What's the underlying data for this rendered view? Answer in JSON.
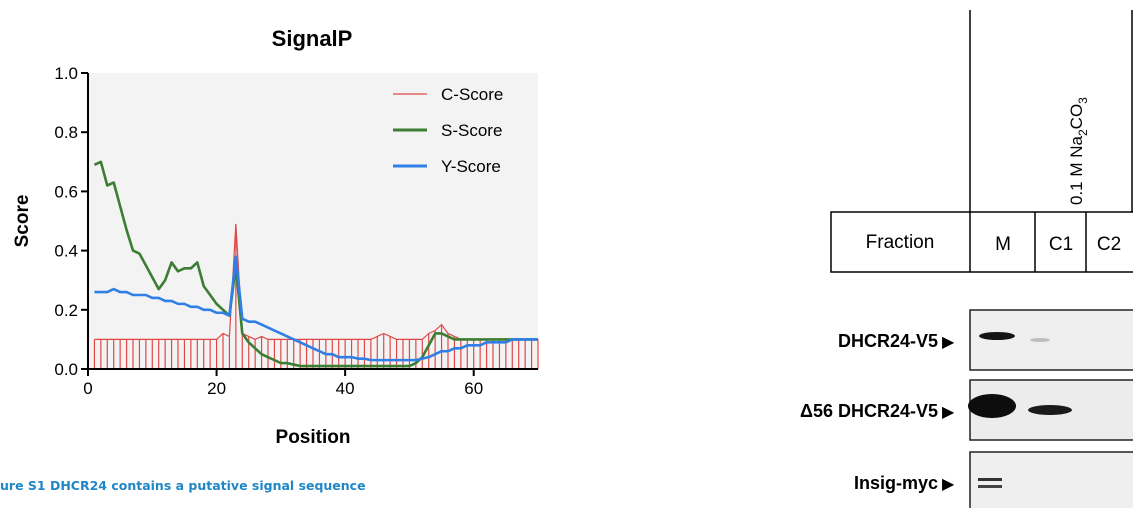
{
  "colors": {
    "c_score": "#e04848",
    "s_score": "#3a7d33",
    "y_score": "#2f7fe6",
    "caption": "#1f86c8",
    "plot_bg": "#f3f3f3"
  },
  "caption": "ure S1 DHCR24 contains a putative signal sequence",
  "chart_data": {
    "type": "line",
    "title": "SignalP",
    "xlabel": "Position",
    "ylabel": "Score",
    "xlim": [
      0,
      70
    ],
    "ylim": [
      0,
      1.0
    ],
    "x_ticks": [
      0,
      20,
      40,
      60
    ],
    "y_ticks": [
      0.0,
      0.2,
      0.4,
      0.6,
      0.8,
      1.0
    ],
    "x_tick_labels": [
      "0",
      "20",
      "40",
      "60"
    ],
    "y_tick_labels": [
      "0.0",
      "0.2",
      "0.4",
      "0.6",
      "0.8",
      "1.0"
    ],
    "legend_position": "top-right",
    "grid": false,
    "series": [
      {
        "name": "C-Score",
        "style": "vertical-bars",
        "x": [
          1,
          2,
          3,
          4,
          5,
          6,
          7,
          8,
          9,
          10,
          11,
          12,
          13,
          14,
          15,
          16,
          17,
          18,
          19,
          20,
          21,
          22,
          23,
          24,
          25,
          26,
          27,
          28,
          29,
          30,
          31,
          32,
          33,
          34,
          35,
          36,
          37,
          38,
          39,
          40,
          41,
          42,
          43,
          44,
          45,
          46,
          47,
          48,
          49,
          50,
          51,
          52,
          53,
          54,
          55,
          56,
          57,
          58,
          59,
          60,
          61,
          62,
          63,
          64,
          65,
          66,
          67,
          68,
          69,
          70
        ],
        "y": [
          0.1,
          0.1,
          0.1,
          0.1,
          0.1,
          0.1,
          0.1,
          0.1,
          0.1,
          0.1,
          0.1,
          0.1,
          0.1,
          0.1,
          0.1,
          0.1,
          0.1,
          0.1,
          0.1,
          0.1,
          0.12,
          0.11,
          0.49,
          0.12,
          0.11,
          0.1,
          0.11,
          0.1,
          0.1,
          0.1,
          0.1,
          0.1,
          0.1,
          0.1,
          0.1,
          0.1,
          0.1,
          0.1,
          0.1,
          0.1,
          0.1,
          0.1,
          0.1,
          0.1,
          0.11,
          0.12,
          0.11,
          0.1,
          0.1,
          0.1,
          0.1,
          0.1,
          0.12,
          0.13,
          0.15,
          0.12,
          0.11,
          0.1,
          0.1,
          0.1,
          0.1,
          0.1,
          0.1,
          0.1,
          0.1,
          0.1,
          0.1,
          0.1,
          0.1,
          0.1
        ]
      },
      {
        "name": "S-Score",
        "style": "line",
        "x": [
          1,
          2,
          3,
          4,
          5,
          6,
          7,
          8,
          9,
          10,
          11,
          12,
          13,
          14,
          15,
          16,
          17,
          18,
          19,
          20,
          21,
          22,
          23,
          24,
          25,
          26,
          27,
          28,
          29,
          30,
          31,
          32,
          33,
          34,
          35,
          36,
          37,
          38,
          39,
          40,
          41,
          42,
          43,
          44,
          45,
          46,
          47,
          48,
          49,
          50,
          51,
          52,
          53,
          54,
          55,
          56,
          57,
          58,
          59,
          60,
          61,
          62,
          63,
          64,
          65,
          66,
          67,
          68,
          69,
          70
        ],
        "y": [
          0.69,
          0.7,
          0.62,
          0.63,
          0.55,
          0.47,
          0.4,
          0.39,
          0.35,
          0.31,
          0.27,
          0.3,
          0.36,
          0.33,
          0.34,
          0.34,
          0.36,
          0.28,
          0.25,
          0.22,
          0.2,
          0.18,
          0.35,
          0.12,
          0.09,
          0.07,
          0.05,
          0.04,
          0.03,
          0.02,
          0.02,
          0.015,
          0.01,
          0.01,
          0.01,
          0.01,
          0.01,
          0.01,
          0.01,
          0.01,
          0.01,
          0.01,
          0.01,
          0.01,
          0.01,
          0.01,
          0.01,
          0.01,
          0.01,
          0.01,
          0.02,
          0.04,
          0.08,
          0.12,
          0.12,
          0.11,
          0.1,
          0.1,
          0.1,
          0.1,
          0.1,
          0.1,
          0.1,
          0.1,
          0.1,
          0.1,
          0.1,
          0.1,
          0.1,
          0.1
        ]
      },
      {
        "name": "Y-Score",
        "style": "line",
        "x": [
          1,
          2,
          3,
          4,
          5,
          6,
          7,
          8,
          9,
          10,
          11,
          12,
          13,
          14,
          15,
          16,
          17,
          18,
          19,
          20,
          21,
          22,
          23,
          24,
          25,
          26,
          27,
          28,
          29,
          30,
          31,
          32,
          33,
          34,
          35,
          36,
          37,
          38,
          39,
          40,
          41,
          42,
          43,
          44,
          45,
          46,
          47,
          48,
          49,
          50,
          51,
          52,
          53,
          54,
          55,
          56,
          57,
          58,
          59,
          60,
          61,
          62,
          63,
          64,
          65,
          66,
          67,
          68,
          69,
          70
        ],
        "y": [
          0.26,
          0.26,
          0.26,
          0.27,
          0.26,
          0.26,
          0.25,
          0.25,
          0.25,
          0.24,
          0.24,
          0.23,
          0.23,
          0.22,
          0.22,
          0.21,
          0.21,
          0.2,
          0.2,
          0.19,
          0.19,
          0.18,
          0.38,
          0.17,
          0.16,
          0.16,
          0.15,
          0.14,
          0.13,
          0.12,
          0.11,
          0.1,
          0.09,
          0.08,
          0.07,
          0.06,
          0.05,
          0.05,
          0.04,
          0.04,
          0.04,
          0.035,
          0.035,
          0.03,
          0.03,
          0.03,
          0.03,
          0.03,
          0.03,
          0.03,
          0.03,
          0.035,
          0.04,
          0.05,
          0.06,
          0.06,
          0.07,
          0.07,
          0.08,
          0.08,
          0.08,
          0.09,
          0.09,
          0.09,
          0.09,
          0.1,
          0.1,
          0.1,
          0.1,
          0.1
        ]
      }
    ]
  },
  "blot": {
    "treatment_label": "0.1 M Na",
    "treatment_sub1": "2",
    "treatment_mid": "CO",
    "treatment_sub2": "3",
    "fraction_label": "Fraction",
    "lanes": [
      "M",
      "C1",
      "C2"
    ],
    "rows": [
      {
        "label": "DHCR24-V5",
        "arrow": "▶"
      },
      {
        "label": "Δ56 DHCR24-V5",
        "arrow": "▶"
      },
      {
        "label": "Insig-myc",
        "arrow": "▶"
      }
    ]
  }
}
